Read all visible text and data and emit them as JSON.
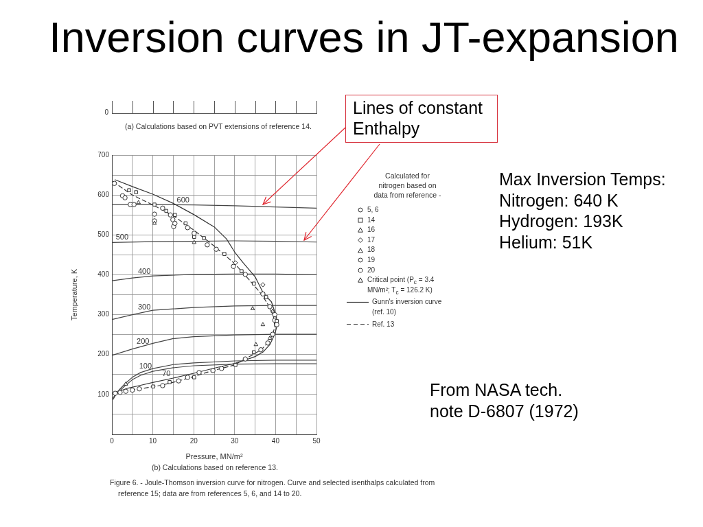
{
  "chart_data": {
    "type": "line",
    "title": "Inversion curves in JT-expansion",
    "xlabel": "Pressure, MN/m²",
    "ylabel": "Temperature, K",
    "legend_title": "Calculated for nitrogen based on data from reference -",
    "legend": "right",
    "grid": true,
    "xlim": [
      0,
      50
    ],
    "xticks": [
      0,
      {
        "value": 5,
        "label": null
      },
      10,
      {
        "value": 15,
        "label": null
      },
      20,
      {
        "value": 25,
        "label": null
      },
      30,
      {
        "value": 35,
        "label": null
      },
      40,
      {
        "value": 45,
        "label": null
      },
      50
    ],
    "ylim": [
      0,
      700
    ],
    "yticks": [
      {
        "value": 0,
        "label": null
      },
      {
        "value": 50,
        "label": null
      },
      100,
      {
        "value": 150,
        "label": null
      },
      200,
      {
        "value": 250,
        "label": null
      },
      300,
      {
        "value": 350,
        "label": null
      },
      400,
      {
        "value": 450,
        "label": null
      },
      500,
      {
        "value": 550,
        "label": null
      },
      600,
      {
        "value": 650,
        "label": null
      },
      700
    ],
    "series": [
      {
        "name": "5, 6",
        "type": "scatter",
        "marker": "circle",
        "color": "#333333",
        "x": [
          0.6,
          3.2,
          4.5,
          5.4,
          12.4,
          14.3,
          14.9,
          15.4,
          18.5,
          20.1,
          23.3,
          25.5,
          29.7,
          32.6,
          36.9,
          38.6,
          39.8,
          40.3,
          39.3,
          38.1,
          36.4,
          32.6,
          26.8,
          24.7,
          21.3,
          18.5,
          16.3,
          12.4,
          6.7,
          5.0,
          3.4,
          2.0,
          0.8
        ],
        "values": [
          629,
          593,
          576,
          576,
          567,
          550,
          538,
          529,
          518,
          504,
          475,
          464,
          421,
          401,
          352,
          320,
          300,
          275,
          251,
          229,
          212,
          189,
          165,
          160,
          155,
          143,
          134,
          122,
          114,
          111,
          108,
          105,
          103
        ]
      },
      {
        "name": "14",
        "type": "scatter",
        "marker": "square",
        "color": "#333333",
        "x": [
          4.2,
          5.9,
          10.4,
          13.3,
          15.4,
          18.0,
          20.1,
          22.5,
          27.5,
          31.7,
          34.7,
          37.7,
          40.3,
          34.7,
          30.2,
          20.1,
          14.1,
          10.1
        ],
        "values": [
          612,
          607,
          576,
          560,
          550,
          529,
          495,
          492,
          452,
          409,
          378,
          344,
          284,
          206,
          174,
          143,
          131,
          120
        ]
      },
      {
        "name": "16",
        "type": "scatter",
        "marker": "triangle",
        "color": "#333333",
        "x": [
          6.5,
          10.4,
          20.1,
          34.4,
          36.9,
          35.2
        ],
        "values": [
          581,
          529,
          481,
          315,
          275,
          225
        ]
      },
      {
        "name": "17",
        "type": "scatter",
        "marker": "diamond",
        "color": "#333333",
        "x": [
          30.2,
          36.9
        ],
        "values": [
          430,
          375
        ]
      },
      {
        "name": "18",
        "type": "scatter",
        "marker": "triangle",
        "color": "#333333",
        "x": [
          39.3,
          38.6
        ],
        "values": [
          309,
          241
        ]
      },
      {
        "name": "19",
        "type": "scatter",
        "marker": "circle",
        "color": "#333333",
        "x": [
          10.4,
          15.1
        ],
        "values": [
          552,
          521
        ]
      },
      {
        "name": "20",
        "type": "scatter",
        "marker": "circle",
        "color": "#333333",
        "x": [
          2.6,
          10.4,
          39.8
        ],
        "values": [
          598,
          535,
          286
        ]
      },
      {
        "name": "Critical point (P$_{c}$ = 3.4 MN/m²; T$_{c}$ = 126.2 K)",
        "type": "scatter",
        "marker": "triangle",
        "color": "#333333",
        "x": [
          3.4
        ],
        "values": [
          126
        ]
      },
      {
        "name": "Gunn's inversion curve (ref. 10)",
        "line_style": "solid",
        "color": "#333333",
        "x": [
          0.8,
          5,
          10,
          15,
          20,
          25,
          28,
          30,
          32,
          35,
          37,
          39,
          40.2,
          40.3,
          39.8,
          38.6,
          37,
          35,
          32.5,
          30,
          25,
          20,
          15,
          10,
          7,
          4,
          2.3,
          0.7
        ],
        "values": [
          638,
          621,
          602,
          579,
          551,
          520,
          490,
          457,
          431,
          395,
          354,
          332,
          295,
          270,
          251,
          225,
          207,
          195,
          186,
          178,
          166,
          153,
          141,
          130,
          123,
          116,
          110,
          102
        ]
      },
      {
        "name": "Ref. 13",
        "line_style": "dashed",
        "color": "#333333",
        "x": [
          0.3,
          5,
          10,
          15,
          20,
          25,
          30,
          33.5,
          36.5,
          38.5,
          39.5,
          39.8,
          39.3,
          38.3,
          36.5,
          34.5,
          32.5,
          30,
          27,
          24,
          20,
          16,
          12,
          8,
          4,
          2,
          0.5
        ],
        "values": [
          633,
          600,
          575,
          548,
          512,
          472,
          428,
          388,
          352,
          320,
          295,
          270,
          250,
          232,
          212,
          200,
          189,
          174,
          166,
          158,
          145,
          133,
          123,
          116,
          110,
          106,
          100
        ]
      },
      {
        "line_style": "solid",
        "color": "#444444",
        "x": [
          0,
          10,
          20,
          30,
          40,
          50
        ],
        "values": [
          576,
          576,
          575,
          573,
          570,
          567
        ]
      },
      {
        "line_style": "solid",
        "color": "#444444",
        "x": [
          0,
          10,
          20,
          30,
          40,
          50
        ],
        "values": [
          481,
          483,
          484,
          485,
          484,
          482
        ]
      },
      {
        "line_style": "solid",
        "color": "#444444",
        "x": [
          0,
          5,
          10,
          20,
          30,
          40,
          50
        ],
        "values": [
          385,
          392,
          397,
          401,
          402,
          402,
          400
        ]
      },
      {
        "line_style": "solid",
        "color": "#444444",
        "x": [
          0,
          5,
          10,
          20,
          30,
          40,
          50
        ],
        "values": [
          288,
          300,
          311,
          318,
          322,
          323,
          323
        ]
      },
      {
        "line_style": "solid",
        "color": "#444444",
        "x": [
          0,
          5,
          10,
          15,
          20,
          30,
          40,
          50
        ],
        "values": [
          198,
          214,
          228,
          240,
          245,
          249,
          251,
          251
        ]
      },
      {
        "line_style": "solid",
        "color": "#444444",
        "x": [
          0.3,
          1,
          2,
          3,
          5,
          7,
          10,
          15,
          20,
          30,
          40,
          50
        ],
        "values": [
          91,
          103,
          114,
          125,
          143,
          155,
          165,
          175,
          179,
          184,
          186,
          186
        ]
      },
      {
        "line_style": "solid",
        "color": "#444444",
        "x": [
          0.3,
          1,
          2,
          3,
          5,
          7,
          10,
          15,
          20,
          30,
          40,
          50
        ],
        "values": [
          88,
          100,
          110,
          120,
          137,
          148,
          158,
          167,
          172,
          176,
          177,
          177
        ]
      }
    ],
    "annotations": [
      "0",
      "(a) Calculations based on PVT extensions of reference 14.",
      "(b) Calculations based on reference 13.",
      "Figure 6. - Joule-Thomson inversion curve for nitrogen. Curve and selected isenthalps calculated from reference 15; data are from references 5, 6, and 14 to 20.",
      "Lines of constant Enthalpy",
      "Max Inversion Temps:",
      "Nitrogen: 640 K",
      "Hydrogen: 193K",
      "Helium: 51K",
      "From NASA tech. note D-6807 (1972)",
      {
        "text": "600",
        "x": 17.4,
        "y": 575
      },
      {
        "text": "500",
        "x": 2.5,
        "y": 482
      },
      {
        "text": "400",
        "x": 7.9,
        "y": 395
      },
      {
        "text": "300",
        "x": 7.9,
        "y": 306
      },
      {
        "text": "200",
        "x": 7.6,
        "y": 221
      },
      {
        "text": "100",
        "x": 8.2,
        "y": 159
      },
      {
        "text": "70",
        "x": 13.3,
        "y": 164
      }
    ]
  }
}
